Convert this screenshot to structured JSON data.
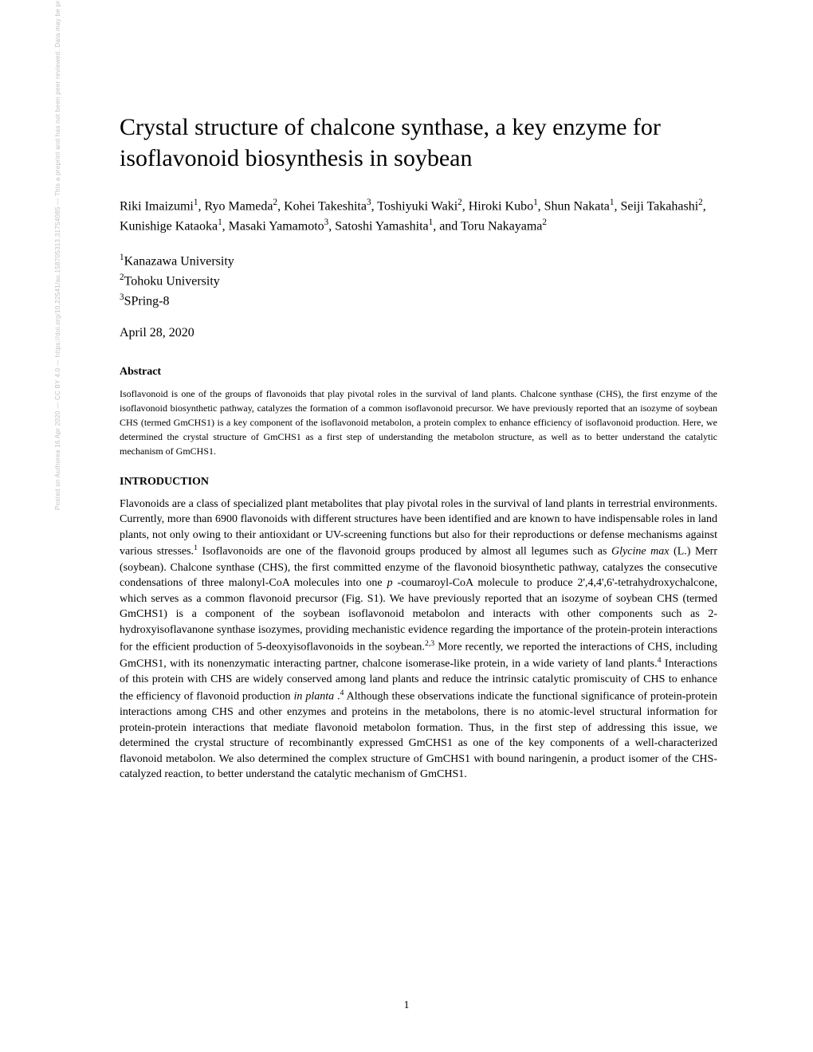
{
  "watermark": "Posted on Authorea 16 Apr 2020 — CC BY 4.0 — https://doi.org/10.22541/au.158705313.31754085 — This a preprint and has not been peer reviewed. Data may be preliminary.",
  "title": "Crystal structure of chalcone synthase, a key enzyme for isoflavonoid biosynthesis in soybean",
  "authors": [
    {
      "name": "Riki Imaizumi",
      "aff": "1"
    },
    {
      "name": "Ryo Mameda",
      "aff": "2"
    },
    {
      "name": "Kohei Takeshita",
      "aff": "3"
    },
    {
      "name": "Toshiyuki Waki",
      "aff": "2"
    },
    {
      "name": "Hiroki Kubo",
      "aff": "1"
    },
    {
      "name": "Shun Nakata",
      "aff": "1"
    },
    {
      "name": "Seiji Takahashi",
      "aff": "2"
    },
    {
      "name": "Kunishige Kataoka",
      "aff": "1"
    },
    {
      "name": "Masaki Yamamoto",
      "aff": "3"
    },
    {
      "name": "Satoshi Yamashita",
      "aff": "1"
    },
    {
      "name": "Toru Nakayama",
      "aff": "2",
      "prefix": "and "
    }
  ],
  "affiliations": [
    {
      "num": "1",
      "name": "Kanazawa University"
    },
    {
      "num": "2",
      "name": "Tohoku University"
    },
    {
      "num": "3",
      "name": "SPring-8"
    }
  ],
  "date": "April 28, 2020",
  "abstract_heading": "Abstract",
  "abstract_text": "Isoflavonoid is one of the groups of flavonoids that play pivotal roles in the survival of land plants. Chalcone synthase (CHS), the first enzyme of the isoflavonoid biosynthetic pathway, catalyzes the formation of a common isoflavonoid precursor. We have previously reported that an isozyme of soybean CHS (termed GmCHS1) is a key component of the isoflavonoid metabolon, a protein complex to enhance efficiency of isoflavonoid production. Here, we determined the crystal structure of GmCHS1 as a first step of understanding the metabolon structure, as well as to better understand the catalytic mechanism of GmCHS1.",
  "section_heading": "INTRODUCTION",
  "body_parts": [
    {
      "t": "text",
      "v": "Flavonoids are a class of specialized plant metabolites that play pivotal roles in the survival of land plants in terrestrial environments. Currently, more than 6900 flavonoids with different structures have been identified and are known to have indispensable roles in land plants, not only owing to their antioxidant or UV-screening functions but also for their reproductions or defense mechanisms against various stresses."
    },
    {
      "t": "sup",
      "v": "1"
    },
    {
      "t": "text",
      "v": " Isoflavonoids are one of the flavonoid groups produced by almost all legumes such as "
    },
    {
      "t": "italic",
      "v": "Glycine max"
    },
    {
      "t": "text",
      "v": " (L.) Merr (soybean). Chalcone synthase (CHS), the first committed enzyme of the flavonoid biosynthetic pathway, catalyzes the consecutive condensations of three malonyl-CoA molecules into one "
    },
    {
      "t": "italic",
      "v": "p"
    },
    {
      "t": "text",
      "v": " -coumaroyl-CoA molecule to produce 2',4,4',6'-tetrahydroxychalcone, which serves as a common flavonoid precursor (Fig. S1). We have previously reported that an isozyme of soybean CHS (termed GmCHS1) is a component of the soybean isoflavonoid metabolon and interacts with other components such as 2-hydroxyisoflavanone synthase isozymes, providing mechanistic evidence regarding the importance of the protein-protein interactions for the efficient production of 5-deoxyisoflavonoids in the soybean."
    },
    {
      "t": "sup",
      "v": "2,3"
    },
    {
      "t": "text",
      "v": " More recently, we reported the interactions of CHS, including GmCHS1, with its nonenzymatic interacting partner, chalcone isomerase-like protein, in a wide variety of land plants."
    },
    {
      "t": "sup",
      "v": "4"
    },
    {
      "t": "text",
      "v": " Interactions of this protein with CHS are widely conserved among land plants and reduce the intrinsic catalytic promiscuity of CHS to enhance the efficiency of flavonoid production "
    },
    {
      "t": "italic",
      "v": "in planta"
    },
    {
      "t": "text",
      "v": " ."
    },
    {
      "t": "sup",
      "v": "4"
    },
    {
      "t": "text",
      "v": " Although these observations indicate the functional significance of protein-protein interactions among CHS and other enzymes and proteins in the metabolons, there is no atomic-level structural information for protein-protein interactions that mediate flavonoid metabolon formation. Thus, in the first step of addressing this issue, we determined the crystal structure of recombinantly expressed GmCHS1 as one of the key components of a well-characterized flavonoid metabolon. We also determined the complex structure of GmCHS1 with bound naringenin, a product isomer of the CHS-catalyzed reaction, to better understand the catalytic mechanism of GmCHS1."
    }
  ],
  "page_number": "1",
  "colors": {
    "background": "#ffffff",
    "text": "#000000",
    "watermark": "#c0c0c0"
  },
  "typography": {
    "title_fontsize": 30,
    "authors_fontsize": 16,
    "abstract_heading_fontsize": 14,
    "abstract_text_fontsize": 12,
    "section_heading_fontsize": 14,
    "body_fontsize": 14,
    "font_family": "Times New Roman"
  }
}
